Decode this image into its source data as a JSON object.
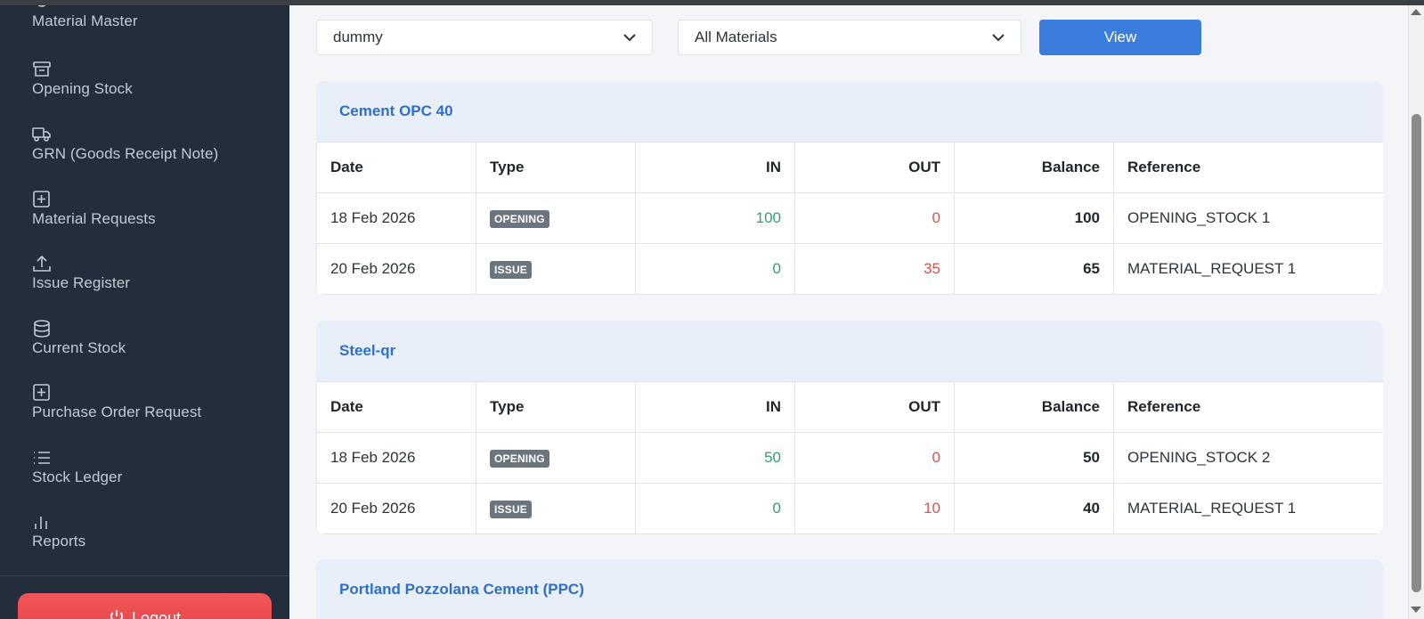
{
  "sidebar": {
    "items": [
      {
        "label": "Material Master",
        "icon": "shield-icon"
      },
      {
        "label": "Opening Stock",
        "icon": "archive-icon"
      },
      {
        "label": "GRN (Goods Receipt Note)",
        "icon": "truck-icon"
      },
      {
        "label": "Material Requests",
        "icon": "plus-square-icon"
      },
      {
        "label": "Issue Register",
        "icon": "upload-icon"
      },
      {
        "label": "Current Stock",
        "icon": "database-icon"
      },
      {
        "label": "Purchase Order Request",
        "icon": "plus-square-icon"
      },
      {
        "label": "Stock Ledger",
        "icon": "list-icon"
      },
      {
        "label": "Reports",
        "icon": "bar-chart-icon"
      }
    ],
    "logout_label": "Logout"
  },
  "filters": {
    "project_value": "dummy",
    "material_value": "All Materials",
    "view_label": "View"
  },
  "ledger_columns": [
    "Date",
    "Type",
    "IN",
    "OUT",
    "Balance",
    "Reference"
  ],
  "ledgers": [
    {
      "title": "Cement OPC 40",
      "rows": [
        {
          "date": "18 Feb 2026",
          "type": "OPENING",
          "in": "100",
          "out": "0",
          "balance": "100",
          "reference": "OPENING_STOCK 1"
        },
        {
          "date": "20 Feb 2026",
          "type": "ISSUE",
          "in": "0",
          "out": "35",
          "balance": "65",
          "reference": "MATERIAL_REQUEST 1"
        }
      ]
    },
    {
      "title": "Steel-qr",
      "rows": [
        {
          "date": "18 Feb 2026",
          "type": "OPENING",
          "in": "50",
          "out": "0",
          "balance": "50",
          "reference": "OPENING_STOCK 2"
        },
        {
          "date": "20 Feb 2026",
          "type": "ISSUE",
          "in": "0",
          "out": "10",
          "balance": "40",
          "reference": "MATERIAL_REQUEST 1"
        }
      ]
    },
    {
      "title": "Portland Pozzolana Cement (PPC)",
      "rows": []
    }
  ],
  "colors": {
    "sidebar_bg": "#232d3b",
    "accent": "#3b7ddd",
    "in_green": "#2fa36b",
    "out_red": "#d9534f",
    "logout_red": "#e53e42"
  }
}
